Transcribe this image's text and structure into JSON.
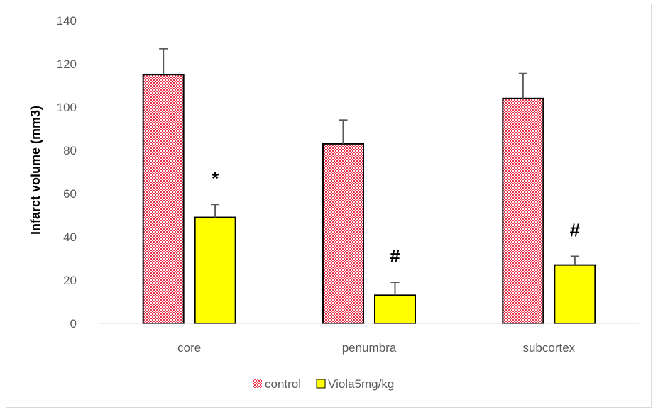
{
  "chart_data": {
    "type": "bar",
    "title": "",
    "xlabel": "",
    "ylabel": "Infarct volume (mm3)",
    "categories": [
      "core",
      "penumbra",
      "subcortex"
    ],
    "ylim": [
      0,
      140
    ],
    "yticks": [
      0,
      20,
      40,
      60,
      80,
      100,
      120,
      140
    ],
    "grid": false,
    "legend_position": "bottom",
    "series": [
      {
        "name": "control",
        "values": [
          115,
          83,
          104
        ],
        "errors": [
          12,
          11,
          11.5
        ],
        "color": "#e8334a",
        "pattern": "checker"
      },
      {
        "name": "Viola5mg/kg",
        "values": [
          49,
          13,
          27
        ],
        "errors": [
          6,
          6,
          4
        ],
        "color": "#ffff00",
        "pattern": "solid"
      }
    ],
    "annotations": [
      {
        "category": "core",
        "series": "Viola5mg/kg",
        "text": "*"
      },
      {
        "category": "penumbra",
        "series": "Viola5mg/kg",
        "text": "#"
      },
      {
        "category": "subcortex",
        "series": "Viola5mg/kg",
        "text": "#"
      }
    ]
  }
}
